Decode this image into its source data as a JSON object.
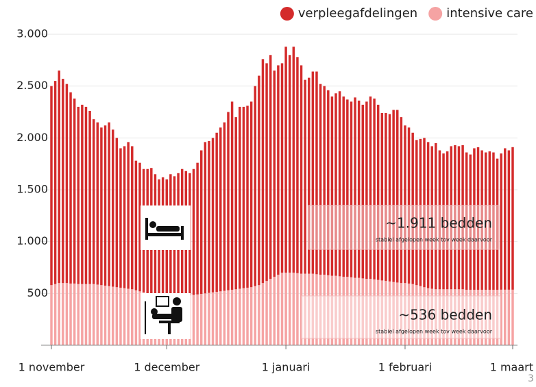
{
  "chart_data": {
    "type": "stacked_bar",
    "categories": [
      "1 november",
      null,
      null,
      null,
      null,
      null,
      null,
      null,
      null,
      null,
      null,
      null,
      null,
      null,
      null,
      null,
      null,
      null,
      null,
      null,
      null,
      null,
      null,
      null,
      null,
      null,
      null,
      null,
      null,
      null,
      "1 december",
      null,
      null,
      null,
      null,
      null,
      null,
      null,
      null,
      null,
      null,
      null,
      null,
      null,
      null,
      null,
      null,
      null,
      null,
      null,
      null,
      null,
      null,
      null,
      null,
      null,
      null,
      null,
      null,
      null,
      null,
      "1 januari",
      null,
      null,
      null,
      null,
      null,
      null,
      null,
      null,
      null,
      null,
      null,
      null,
      null,
      null,
      null,
      null,
      null,
      null,
      null,
      null,
      null,
      null,
      null,
      null,
      null,
      null,
      null,
      null,
      null,
      null,
      "1 februari",
      null,
      null,
      null,
      null,
      null,
      null,
      null,
      null,
      null,
      null,
      null,
      null,
      null,
      null,
      null,
      null,
      null,
      null,
      null,
      null,
      null,
      null,
      null,
      null,
      null,
      null,
      null,
      "1 maart"
    ],
    "series": [
      {
        "name": "verpleegafdelingen",
        "color": "#d42b2b",
        "values": [
          1920,
          1960,
          2050,
          1970,
          1920,
          1845,
          1785,
          1710,
          1730,
          1710,
          1670,
          1590,
          1565,
          1520,
          1545,
          1580,
          1515,
          1440,
          1345,
          1370,
          1415,
          1380,
          1250,
          1240,
          1190,
          1200,
          1220,
          1170,
          1125,
          1150,
          1130,
          1180,
          1160,
          1190,
          1225,
          1200,
          1180,
          1215,
          1270,
          1385,
          1460,
          1465,
          1490,
          1535,
          1580,
          1625,
          1720,
          1815,
          1660,
          1755,
          1750,
          1755,
          1790,
          1930,
          2020,
          2160,
          2100,
          2160,
          1990,
          2020,
          2020,
          2180,
          2100,
          2180,
          2085,
          2010,
          1870,
          1890,
          1950,
          1955,
          1840,
          1820,
          1785,
          1730,
          1760,
          1785,
          1740,
          1710,
          1695,
          1740,
          1710,
          1675,
          1710,
          1760,
          1745,
          1690,
          1615,
          1620,
          1615,
          1660,
          1665,
          1600,
          1520,
          1505,
          1460,
          1400,
          1420,
          1440,
          1410,
          1375,
          1410,
          1340,
          1310,
          1330,
          1380,
          1390,
          1380,
          1390,
          1325,
          1305,
          1365,
          1375,
          1345,
          1325,
          1335,
          1325,
          1265,
          1314,
          1364,
          1344,
          1375
        ]
      },
      {
        "name": "intensive care",
        "color": "#f5a3a3",
        "values": [
          580,
          590,
          600,
          600,
          600,
          595,
          595,
          590,
          590,
          590,
          590,
          590,
          585,
          580,
          575,
          570,
          565,
          560,
          555,
          550,
          545,
          540,
          530,
          520,
          510,
          500,
          490,
          480,
          475,
          470,
          470,
          470,
          470,
          470,
          475,
          480,
          480,
          485,
          490,
          495,
          500,
          505,
          510,
          515,
          520,
          525,
          530,
          535,
          540,
          545,
          550,
          555,
          560,
          570,
          580,
          600,
          620,
          640,
          660,
          680,
          700,
          700,
          700,
          700,
          695,
          690,
          690,
          690,
          690,
          685,
          680,
          680,
          675,
          670,
          670,
          665,
          660,
          660,
          655,
          650,
          650,
          645,
          640,
          640,
          635,
          630,
          625,
          620,
          615,
          610,
          605,
          600,
          600,
          595,
          590,
          580,
          570,
          560,
          550,
          545,
          540,
          540,
          540,
          540,
          540,
          540,
          540,
          540,
          535,
          535,
          535,
          535,
          535,
          535,
          535,
          535,
          535,
          536,
          536,
          536,
          536
        ]
      }
    ],
    "ylim": [
      0,
      3000
    ],
    "yticks": [
      500,
      {
        "value": 1000,
        "label": "1.000"
      },
      {
        "value": 1500,
        "label": "1.500"
      },
      {
        "value": 2000,
        "label": "2.000"
      },
      {
        "value": 2500,
        "label": "2.500"
      },
      {
        "value": 3000,
        "label": "3.000"
      }
    ],
    "grid": true,
    "legend": "top-right",
    "annotations": [
      {
        "text": "~1.911 bedden",
        "subtext": "stabiel afgelopen week tov week daarvoor"
      },
      {
        "text": "~536 bedden",
        "subtext": "stabiel afgelopen week tov week daarvoor"
      }
    ]
  },
  "page_number": "3"
}
